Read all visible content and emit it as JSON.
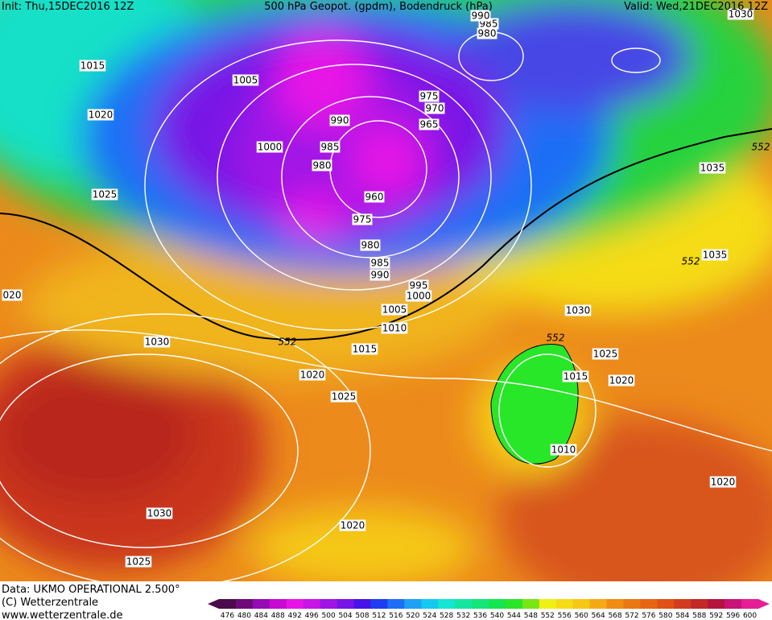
{
  "header": {
    "init": "Init: Thu,15DEC2016 12Z",
    "title": "500 hPa Geopot. (gpdm), Bodendruck (hPa)",
    "valid": "Valid: Wed,21DEC2016 12Z"
  },
  "isobar_labels": [
    "1015",
    "1005",
    "1020",
    "990",
    "1000",
    "985",
    "980",
    "1025",
    "960",
    "975",
    "980",
    "985",
    "990",
    "995",
    "1000",
    "1005",
    "1010",
    "1015",
    "1020",
    "1025",
    "1030",
    "1030",
    "1025",
    "1015",
    "1020",
    "1010",
    "1020",
    "1030",
    "1020",
    "1025",
    "1035",
    "1035",
    "975",
    "970",
    "965",
    "985",
    "980",
    "990",
    "020",
    "1030"
  ],
  "contour_labels": [
    "552",
    "552",
    "552",
    "552"
  ],
  "footer": {
    "data": "Data: UKMO OPERATIONAL 2.500°",
    "copyright": "(C) Wetterzentrale",
    "url": "www.wetterzentrale.de"
  },
  "legend": {
    "values": [
      476,
      480,
      484,
      488,
      492,
      496,
      500,
      504,
      508,
      512,
      516,
      520,
      524,
      528,
      532,
      536,
      540,
      544,
      548,
      552,
      556,
      560,
      564,
      568,
      572,
      576,
      580,
      584,
      588,
      592,
      596,
      600
    ],
    "colors": [
      "#4b0a4b",
      "#6e0a78",
      "#960ab4",
      "#c80ad2",
      "#e614e6",
      "#c814e6",
      "#a014e6",
      "#7814e6",
      "#4614e6",
      "#1e3cf0",
      "#1e6ef5",
      "#1ea0f5",
      "#14c8f0",
      "#14e6d2",
      "#14e6a0",
      "#14e678",
      "#14e650",
      "#28e628",
      "#78e614",
      "#f0f014",
      "#f5dc14",
      "#f5c814",
      "#f5aa14",
      "#f08c14",
      "#eb7814",
      "#e66414",
      "#e15014",
      "#d23c1e",
      "#c32828",
      "#b4143c",
      "#c81478",
      "#e61e96"
    ]
  }
}
